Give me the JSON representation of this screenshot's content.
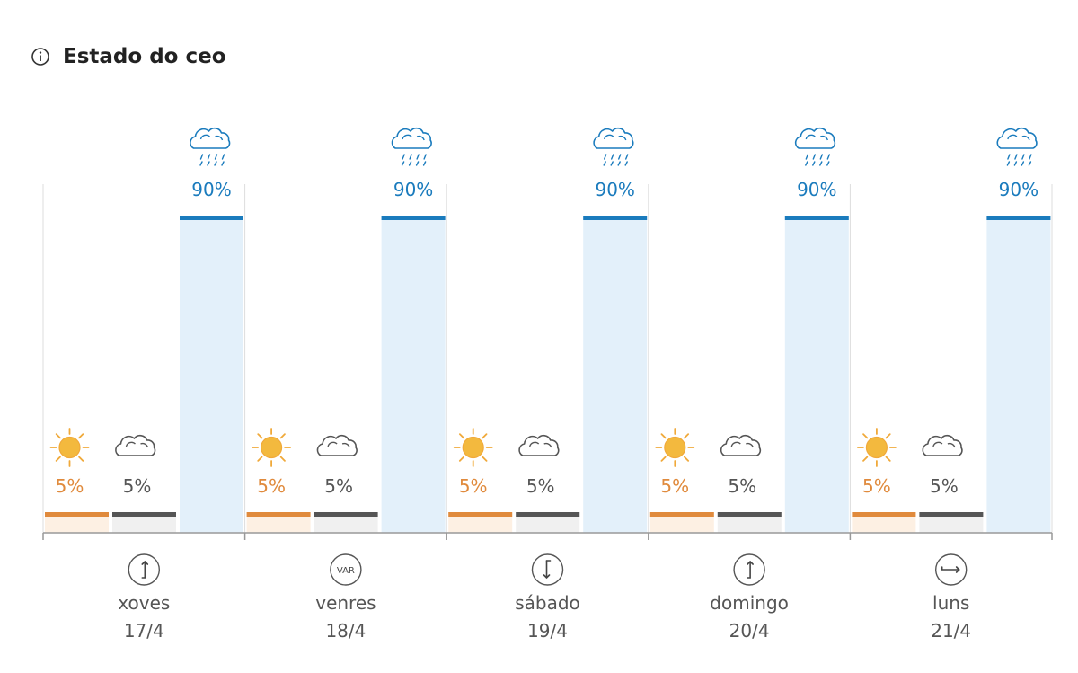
{
  "header": {
    "title": "Estado do ceo",
    "icon": "info-icon"
  },
  "chart_data": {
    "type": "bar",
    "categories": [
      "xoves 17/4",
      "venres 18/4",
      "sábado 19/4",
      "domingo 20/4",
      "luns 21/4"
    ],
    "series": [
      {
        "name": "",
        "icon": "sun-icon",
        "color": "#e08a3c",
        "fill": "#fdf0e3",
        "values": [
          5,
          5,
          5,
          5,
          5
        ]
      },
      {
        "name": "",
        "icon": "cloud-icon",
        "color": "#555555",
        "fill": "#f0f0f0",
        "values": [
          5,
          5,
          5,
          5,
          5
        ]
      },
      {
        "name": "",
        "icon": "rain-cloud-icon",
        "color": "#1a7bbd",
        "fill": "#e3f0fa",
        "values": [
          90,
          90,
          90,
          90,
          90
        ]
      }
    ],
    "value_suffix": "%",
    "ylim": [
      0,
      100
    ],
    "days": [
      {
        "name": "xoves",
        "date": "17/4",
        "wind_icon": "wind-arrow-north-icon",
        "wind_label": ""
      },
      {
        "name": "venres",
        "date": "18/4",
        "wind_icon": "wind-variable-icon",
        "wind_label": "VAR"
      },
      {
        "name": "sábado",
        "date": "19/4",
        "wind_icon": "wind-arrow-south-icon",
        "wind_label": ""
      },
      {
        "name": "domingo",
        "date": "20/4",
        "wind_icon": "wind-arrow-north-icon",
        "wind_label": ""
      },
      {
        "name": "luns",
        "date": "21/4",
        "wind_icon": "wind-arrow-east-icon",
        "wind_label": ""
      }
    ]
  }
}
